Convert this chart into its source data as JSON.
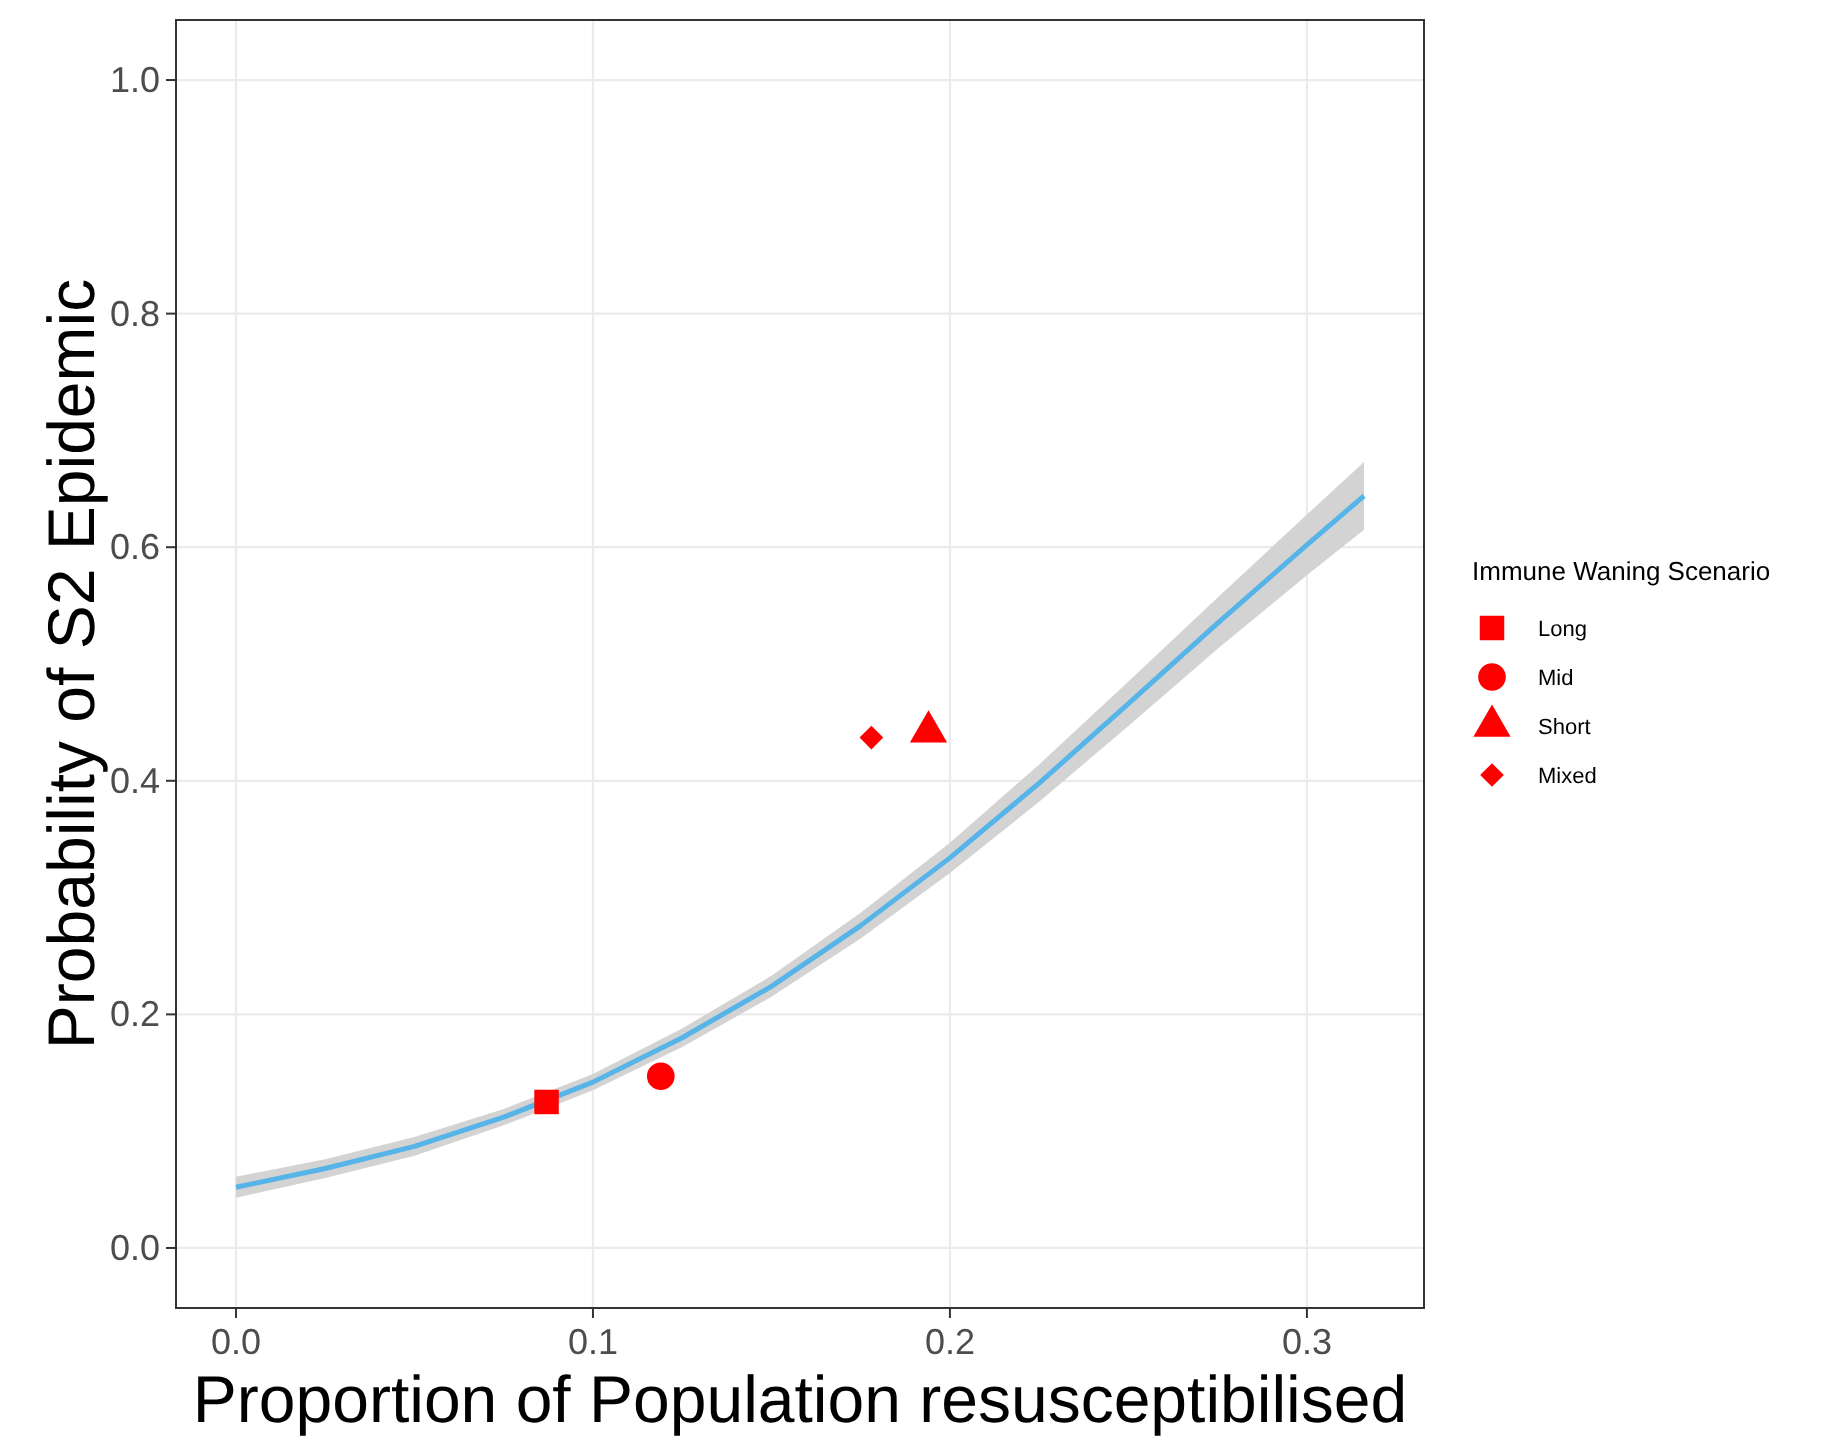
{
  "chart_data": {
    "type": "scatter",
    "xlabel": "Proportion of Population resusceptibilised",
    "ylabel": "Probability of S2 Epidemic",
    "legend_title": "Immune Waning Scenario",
    "legend": "right",
    "grid": true,
    "xlim": [
      -0.0168,
      0.3328
    ],
    "ylim": [
      -0.0514,
      1.0514
    ],
    "xticks": [
      {
        "value": 0,
        "label": "0.0"
      },
      {
        "value": 0.1,
        "label": "0.1"
      },
      {
        "value": 0.2,
        "label": "0.2"
      },
      {
        "value": 0.3,
        "label": "0.3"
      }
    ],
    "yticks": [
      {
        "value": 0,
        "label": "0.0"
      },
      {
        "value": 0.2,
        "label": "0.2"
      },
      {
        "value": 0.4,
        "label": "0.4"
      },
      {
        "value": 0.6,
        "label": "0.6"
      },
      {
        "value": 0.8,
        "label": "0.8"
      },
      {
        "value": 1,
        "label": "1.0"
      }
    ],
    "series": [
      {
        "type": "line",
        "color": "#56b4e9",
        "x": [
          0,
          0.025,
          0.05,
          0.075,
          0.1,
          0.125,
          0.15,
          0.175,
          0.2,
          0.225,
          0.25,
          0.275,
          0.3,
          0.316
        ],
        "values": [
          0.052,
          0.068,
          0.087,
          0.112,
          0.142,
          0.18,
          0.224,
          0.276,
          0.334,
          0.398,
          0.466,
          0.535,
          0.602,
          0.644
        ],
        "lower": [
          0.043,
          0.06,
          0.079,
          0.105,
          0.135,
          0.172,
          0.215,
          0.265,
          0.321,
          0.382,
          0.447,
          0.513,
          0.576,
          0.615
        ],
        "upper": [
          0.061,
          0.076,
          0.095,
          0.119,
          0.149,
          0.188,
          0.233,
          0.287,
          0.347,
          0.414,
          0.485,
          0.557,
          0.628,
          0.673
        ]
      },
      {
        "name": "Long",
        "color": "#ff0000",
        "marker": "square",
        "x": [
          0.087
        ],
        "values": [
          0.125
        ]
      },
      {
        "name": "Mid",
        "color": "#ff0000",
        "marker": "circle",
        "x": [
          0.119
        ],
        "values": [
          0.147
        ]
      },
      {
        "name": "Short",
        "color": "#ff0000",
        "marker": "triangle",
        "x": [
          0.194
        ],
        "values": [
          0.442
        ]
      },
      {
        "name": "Mixed",
        "color": "#ff0000",
        "marker": "diamond",
        "x": [
          0.178
        ],
        "values": [
          0.437
        ]
      }
    ]
  }
}
